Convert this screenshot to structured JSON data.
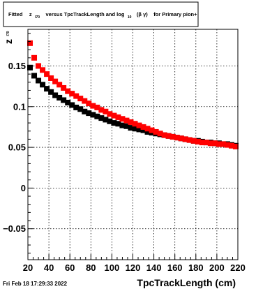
{
  "title": {
    "prefix": "Fitted",
    "z_symbol": "z",
    "z_sub": "I70",
    "middle": "versus TpcTrackLength and log",
    "log_sub": "10",
    "beta_gamma": "(β γ)",
    "suffix": "for Primary pion+"
  },
  "timestamp": "Fri Feb 18 17:29:33 2022",
  "chart_data": {
    "type": "scatter",
    "xlabel": "TpcTrackLength (cm)",
    "ylabel_symbol": "z",
    "ylabel_sub": "I70",
    "xlim": [
      20,
      220
    ],
    "ylim": [
      -0.088,
      0.195
    ],
    "xticks": [
      20,
      40,
      60,
      80,
      100,
      120,
      140,
      160,
      180,
      200,
      220
    ],
    "yticks": [
      -0.05,
      0,
      0.05,
      0.1,
      0.15
    ],
    "ytick_labels": [
      "−0.05",
      "0",
      "0.05",
      "0.1",
      "0.15"
    ],
    "grid": true,
    "series": [
      {
        "color": "#000000",
        "x": [
          22,
          26,
          30,
          34,
          38,
          42,
          46,
          50,
          54,
          58,
          62,
          66,
          70,
          74,
          78,
          82,
          86,
          90,
          94,
          98,
          102,
          106,
          110,
          114,
          118,
          122,
          126,
          130,
          134,
          138,
          142,
          146,
          150,
          154,
          158,
          162,
          166,
          170,
          174,
          178,
          182,
          186,
          190,
          194,
          198,
          202,
          206,
          210,
          214,
          218
        ],
        "y": [
          0.148,
          0.138,
          0.132,
          0.127,
          0.122,
          0.118,
          0.114,
          0.111,
          0.108,
          0.105,
          0.102,
          0.099,
          0.097,
          0.094,
          0.092,
          0.09,
          0.088,
          0.086,
          0.084,
          0.082,
          0.08,
          0.079,
          0.077,
          0.076,
          0.074,
          0.073,
          0.072,
          0.071,
          0.069,
          0.068,
          0.067,
          0.066,
          0.065,
          0.064,
          0.063,
          0.062,
          0.061,
          0.06,
          0.059,
          0.058,
          0.058,
          0.057,
          0.056,
          0.056,
          0.055,
          0.055,
          0.054,
          0.054,
          0.053,
          0.052
        ]
      },
      {
        "color": "#ff0000",
        "x": [
          22,
          26,
          30,
          34,
          38,
          42,
          46,
          50,
          54,
          58,
          62,
          66,
          70,
          74,
          78,
          82,
          86,
          90,
          94,
          98,
          102,
          106,
          110,
          114,
          118,
          122,
          126,
          130,
          134,
          138,
          142,
          146,
          150,
          154,
          158,
          162,
          166,
          170,
          174,
          178,
          182,
          186,
          190,
          194,
          198,
          202,
          206,
          210,
          214,
          218
        ],
        "y": [
          0.178,
          0.16,
          0.15,
          0.145,
          0.14,
          0.135,
          0.131,
          0.127,
          0.123,
          0.119,
          0.116,
          0.113,
          0.11,
          0.107,
          0.104,
          0.101,
          0.099,
          0.096,
          0.094,
          0.091,
          0.089,
          0.087,
          0.085,
          0.083,
          0.081,
          0.079,
          0.077,
          0.075,
          0.073,
          0.071,
          0.069,
          0.067,
          0.065,
          0.064,
          0.063,
          0.062,
          0.061,
          0.06,
          0.059,
          0.058,
          0.057,
          0.056,
          0.056,
          0.055,
          0.055,
          0.054,
          0.054,
          0.053,
          0.052,
          0.051
        ]
      }
    ]
  }
}
